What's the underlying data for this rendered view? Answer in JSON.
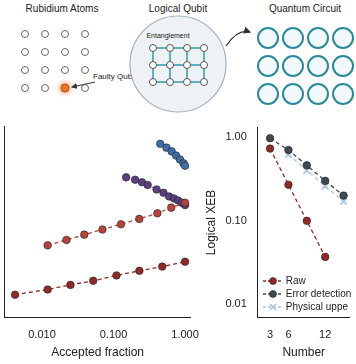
{
  "diagram": {
    "panels": [
      {
        "title": "Rubidium Atoms",
        "annotation": "Faulty Qubit"
      },
      {
        "title": "Logical Qubit",
        "annotation": "Entanglement"
      },
      {
        "title": "Quantum Circuit"
      }
    ]
  },
  "chart_data": [
    {
      "type": "line",
      "xlabel": "Accepted fraction",
      "log": true,
      "xlim": [
        0.003,
        1.2
      ],
      "xticks": [
        {
          "value": 0.01,
          "label": "0.010"
        },
        {
          "value": 0.1,
          "label": "0.100"
        },
        {
          "value": 1,
          "label": "1.000"
        }
      ],
      "ylim": [
        0.007,
        1.3
      ],
      "tick_labels": "x",
      "grid": false,
      "series": [
        {
          "color": "#8e2b26",
          "marker": "circle",
          "line_style": "dashed",
          "x": [
            0.0042,
            0.012,
            0.025,
            0.052,
            0.11,
            0.23,
            0.48,
            1.0
          ],
          "values": [
            0.013,
            0.015,
            0.017,
            0.019,
            0.022,
            0.025,
            0.028,
            0.032
          ]
        },
        {
          "color": "#b2453d",
          "marker": "circle",
          "line_style": "dashed",
          "x": [
            0.012,
            0.022,
            0.039,
            0.07,
            0.127,
            0.229,
            0.41,
            0.64,
            1.0
          ],
          "values": [
            0.05,
            0.058,
            0.067,
            0.077,
            0.089,
            0.103,
            0.12,
            0.14,
            0.16
          ]
        },
        {
          "color": "#5b3f80",
          "marker": "circle",
          "line_style": "dashed",
          "x": [
            0.15,
            0.2,
            0.25,
            0.3,
            0.4,
            0.5,
            0.6,
            0.7,
            0.8,
            0.9,
            1.0
          ],
          "values": [
            0.32,
            0.3,
            0.28,
            0.26,
            0.23,
            0.21,
            0.19,
            0.18,
            0.17,
            0.16,
            0.15
          ]
        },
        {
          "color": "#3f6fa6",
          "marker": "circle",
          "line_style": "dashed",
          "x": [
            0.45,
            0.55,
            0.65,
            0.75,
            0.85,
            0.95,
            1.0
          ],
          "values": [
            0.8,
            0.72,
            0.65,
            0.58,
            0.52,
            0.47,
            0.44
          ]
        }
      ]
    },
    {
      "type": "line",
      "xlabel": "Number",
      "ylabel": "Logical XEB",
      "log": "y",
      "xlim": [
        1,
        16
      ],
      "xticks": [
        3,
        6,
        12
      ],
      "ylim": [
        0.007,
        1.3
      ],
      "yticks": [
        {
          "value": 1,
          "label": "1.00"
        },
        {
          "value": 0.1,
          "label": "0.10"
        },
        {
          "value": 0.01,
          "label": "0.01"
        }
      ],
      "grid": false,
      "legend": "bottom-left",
      "series": [
        {
          "name": "Raw",
          "color": "#8e2b26",
          "marker": "circle",
          "line_style": "dashed",
          "x": [
            3,
            6,
            9,
            12
          ],
          "values": [
            0.73,
            0.27,
            0.1,
            0.037
          ]
        },
        {
          "name": "Error detection",
          "color": "#3e4a50",
          "marker": "circle",
          "line_style": "dashed",
          "x": [
            3,
            6,
            9,
            12,
            15
          ],
          "values": [
            0.97,
            0.7,
            0.46,
            0.3,
            0.2
          ]
        },
        {
          "name": "Physical uppe",
          "color": "#a8c8e0",
          "marker": "x",
          "line_style": "dashed",
          "x": [
            6,
            9,
            12,
            15
          ],
          "values": [
            0.62,
            0.4,
            0.26,
            0.17
          ]
        }
      ]
    }
  ]
}
